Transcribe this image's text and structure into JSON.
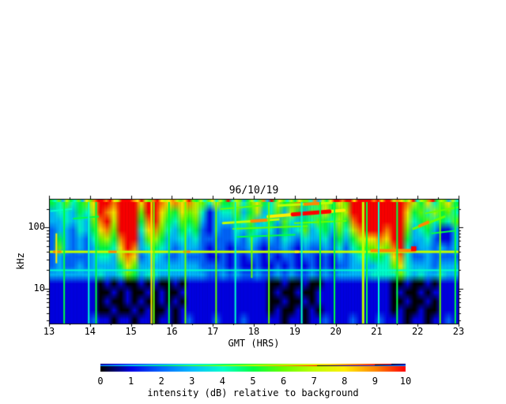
{
  "figure": {
    "title": "96/10/19",
    "background_color": "#FFFFFF",
    "x_axis": {
      "label": "GMT (HRS)",
      "range": [
        13,
        23
      ],
      "tick_labels": [
        "13",
        "14",
        "15",
        "16",
        "17",
        "18",
        "19",
        "20",
        "21",
        "22",
        "23"
      ],
      "minor_tick_interval": 0.5
    },
    "y_axis": {
      "label": "kHz",
      "scale": "log",
      "range": [
        2.7,
        293
      ],
      "major_ticks": [
        {
          "value": 100,
          "label": "100"
        },
        {
          "value": 10,
          "label": "10"
        }
      ],
      "minor_ticks": [
        3,
        4,
        5,
        6,
        7,
        8,
        9,
        20,
        30,
        40,
        50,
        60,
        70,
        80,
        90,
        200
      ]
    },
    "colorbar": {
      "label": "intensity (dB) relative to background",
      "range": [
        0,
        10
      ],
      "tick_labels": [
        "0",
        "1",
        "2",
        "3",
        "4",
        "5",
        "6",
        "7",
        "8",
        "9",
        "10"
      ],
      "color_stops": [
        {
          "v": 0,
          "c": "#000000"
        },
        {
          "v": 1,
          "c": "#0000E6"
        },
        {
          "v": 2,
          "c": "#0066FF"
        },
        {
          "v": 3,
          "c": "#00BBFF"
        },
        {
          "v": 4,
          "c": "#00FFCC"
        },
        {
          "v": 5,
          "c": "#00FF44"
        },
        {
          "v": 6,
          "c": "#66FF00"
        },
        {
          "v": 7,
          "c": "#BFFF00"
        },
        {
          "v": 8,
          "c": "#FFEE00"
        },
        {
          "v": 9,
          "c": "#FF8800"
        },
        {
          "v": 10,
          "c": "#FF0000"
        }
      ]
    }
  },
  "chart_data": {
    "type": "heatmap",
    "description": "Radio wave spectrogram for 96/10/19, 13-23 GMT, ~2.7-293 kHz (log scale). Intense red emission bursts above ~60 kHz near 14.2-16.0 and 20.4-21.8 GMT, each with a column descending to ~25 kHz (at ~15.0 and ~21.3 GMT). Persistent narrowband line at ~40 kHz, cyan band 20-35 kHz, dark background below ~17 kHz with black dropouts, drifting green/yellow streaks 90-250 kHz during 17.3-20.3 and after 21.9 GMT, and a continuously speckled topmost channel.",
    "time_range_hours": [
      13,
      23
    ],
    "frequency_range_khz": [
      2.7,
      293
    ],
    "intensity_range_db": [
      0,
      10
    ],
    "time_bins_per_hour": 6,
    "grid_row_center_khz": [
      280,
      200,
      145,
      105,
      75,
      54,
      39,
      28,
      20,
      14.5,
      10.5,
      7.5,
      5.4,
      3.9
    ],
    "grid": [
      [
        "546456",
        "8AA9",
        "AAA",
        "8AA98",
        "9897",
        "6485",
        "574685475695467586",
        "AAAAAA",
        "AA9",
        "7584685"
      ],
      [
        "344354",
        "7A98",
        "AAA",
        "6AA86",
        "5867",
        "4134",
        "463573463753648567",
        "AAAAAA",
        "AA8",
        "5647564"
      ],
      [
        "334343",
        "69A7",
        "AAA",
        "59A75",
        "4656",
        "3133",
        "354634536435465475",
        "9AAAAA",
        "AA7",
        "4564546"
      ],
      [
        "233243",
        "5896",
        "AAA",
        "48964",
        "3545",
        "2132",
        "243543425346345364",
        "79AAA9",
        "AA6",
        "3453113"
      ],
      [
        "253232",
        "4675",
        "9AA",
        "36753",
        "3434",
        "2222",
        "232432324324334253",
        "578898",
        "AA5",
        "3342113"
      ],
      [
        "263232",
        "3554",
        "8A9",
        "34543",
        "2333",
        "2122",
        "122321223213223242",
        "456676",
        "9A4",
        "2332323"
      ],
      [
        "232222",
        "3443",
        "798",
        "23432",
        "2322",
        "2112",
        "121221212212212132",
        "344554",
        "894",
        "2232222"
      ],
      [
        "232232",
        "3333",
        "586",
        "33333",
        "3333",
        "2222",
        "121121121211212122",
        "333344",
        "684",
        "3332333"
      ],
      [
        "333333",
        "3433",
        "465",
        "34433",
        "3333",
        "3223",
        "232232232322323233",
        "333444",
        "464",
        "3433433"
      ],
      [
        "1111111",
        "0101001010010",
        "111111111111",
        "00100100",
        "1111111111",
        "0010010",
        "111"
      ],
      [
        "1111111",
        "0010100101001",
        "111111111111",
        "01001001",
        "1111111111",
        "0100101",
        "111"
      ],
      [
        "1111111",
        "0100101001010",
        "111111111111",
        "00100101",
        "1111111111",
        "0010010",
        "111"
      ],
      [
        "1111111",
        "0010010100101",
        "111111111111",
        "01001010",
        "1111111111",
        "0100100",
        "111"
      ],
      [
        "1111112",
        "1101101101101",
        "211121112111",
        "11011011",
        "2111211121",
        "1101101",
        "121"
      ]
    ],
    "top_channel": [
      "5463754638",
      "69AA9A87AA",
      "A98A769A87",
      "89768A6574",
      "68475A4763",
      "574693A586",
      "4758664937",
      "58AA9AA8AA",
      "AA9A8AA798",
      "68A4769A57",
      "6374"
    ],
    "features": {
      "horizontal_lines": [
        {
          "f": 40,
          "v": 7,
          "w": 3
        },
        {
          "f": 20,
          "v": 4,
          "w": 2
        }
      ],
      "line_hotspots": [
        {
          "f": 40,
          "t0": 13.1,
          "t1": 13.3,
          "v": 9,
          "w": 3
        },
        {
          "f": 40,
          "t0": 14.45,
          "t1": 14.65,
          "v": 9,
          "w": 3
        },
        {
          "f": 40,
          "t0": 16.28,
          "t1": 16.45,
          "v": 9,
          "w": 3
        },
        {
          "f": 40,
          "t0": 19.0,
          "t1": 19.1,
          "v": 8,
          "w": 3
        },
        {
          "f": 42,
          "t0": 20.85,
          "t1": 21.95,
          "v": 9,
          "w": 4
        },
        {
          "f": 45,
          "t0": 21.84,
          "t1": 21.97,
          "v": 10,
          "w": 6
        }
      ],
      "vertical_bursts": [
        {
          "t": 13.18,
          "v": 8,
          "w": 2,
          "f0": 26,
          "f1": 80
        },
        {
          "t": 13.37,
          "v": 5,
          "w": 2
        },
        {
          "t": 13.97,
          "v": 4,
          "w": 2
        },
        {
          "t": 14.15,
          "v": 5,
          "w": 2
        },
        {
          "t": 15.5,
          "v": 8,
          "w": 2
        },
        {
          "t": 15.56,
          "v": 6,
          "w": 2
        },
        {
          "t": 15.93,
          "v": 5,
          "w": 2
        },
        {
          "t": 16.33,
          "v": 6,
          "w": 2
        },
        {
          "t": 17.08,
          "v": 6,
          "w": 2
        },
        {
          "t": 17.55,
          "v": 4,
          "w": 2
        },
        {
          "t": 17.95,
          "v": 6,
          "w": 2,
          "f0": 15,
          "f1": 70
        },
        {
          "t": 18.37,
          "v": 6,
          "w": 2
        },
        {
          "t": 19.17,
          "v": 4,
          "w": 2
        },
        {
          "t": 19.62,
          "v": 5,
          "w": 2
        },
        {
          "t": 19.97,
          "v": 5,
          "w": 2
        },
        {
          "t": 20.67,
          "v": 7,
          "w": 3
        },
        {
          "t": 20.76,
          "v": 5,
          "w": 2
        },
        {
          "t": 21.05,
          "v": 4,
          "w": 2
        },
        {
          "t": 21.5,
          "v": 5,
          "w": 2
        },
        {
          "t": 22.55,
          "v": 6,
          "w": 2
        },
        {
          "t": 22.92,
          "v": 5,
          "w": 2
        }
      ],
      "streaks": [
        {
          "t0": 13.05,
          "f0": 185,
          "t1": 13.55,
          "f1": 200,
          "v": 4,
          "w": 2
        },
        {
          "t0": 13.6,
          "f0": 140,
          "t1": 14.2,
          "f1": 150,
          "v": 5,
          "w": 2
        },
        {
          "t0": 17.25,
          "f0": 118,
          "t1": 18.6,
          "f1": 135,
          "v": 7,
          "w": 3,
          "core": {
            "t0": 17.95,
            "t1": 18.3,
            "v": 9
          }
        },
        {
          "t0": 17.5,
          "f0": 95,
          "t1": 19.3,
          "f1": 105,
          "v": 6,
          "w": 2
        },
        {
          "t0": 18.35,
          "f0": 150,
          "t1": 20.2,
          "f1": 190,
          "v": 8,
          "w": 4,
          "core": {
            "t0": 18.95,
            "t1": 19.85,
            "v": 10
          }
        },
        {
          "t0": 17.2,
          "f0": 200,
          "t1": 18.2,
          "f1": 228,
          "v": 6,
          "w": 2
        },
        {
          "t0": 18.6,
          "f0": 228,
          "t1": 19.9,
          "f1": 252,
          "v": 7,
          "w": 3,
          "core": {
            "t0": 19.25,
            "t1": 19.6,
            "v": 9
          }
        },
        {
          "t0": 17.6,
          "f0": 70,
          "t1": 19.0,
          "f1": 76,
          "v": 5,
          "w": 2
        },
        {
          "t0": 19.0,
          "f0": 118,
          "t1": 20.25,
          "f1": 128,
          "v": 6,
          "w": 2
        },
        {
          "t0": 21.9,
          "f0": 95,
          "t1": 22.65,
          "f1": 150,
          "v": 6,
          "w": 3,
          "core": {
            "t0": 22.05,
            "t1": 22.25,
            "v": 9
          }
        },
        {
          "t0": 22.2,
          "f0": 170,
          "t1": 23.0,
          "f1": 215,
          "v": 6,
          "w": 2
        },
        {
          "t0": 22.35,
          "f0": 80,
          "t1": 22.9,
          "f1": 88,
          "v": 5,
          "w": 2
        }
      ]
    }
  }
}
